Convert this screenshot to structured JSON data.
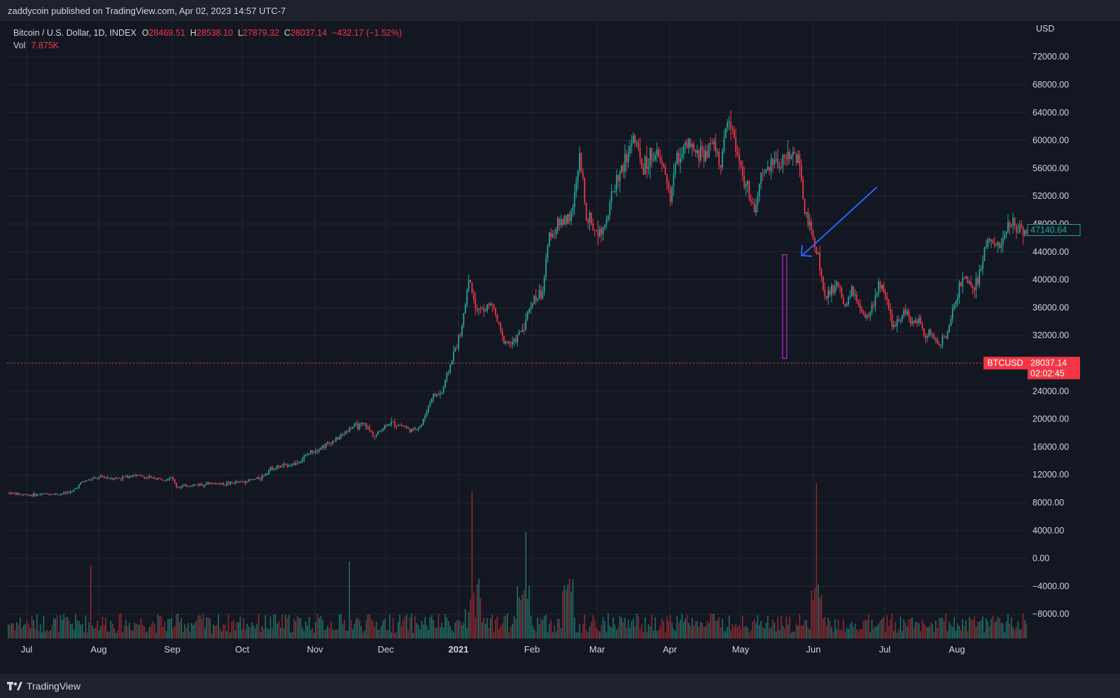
{
  "header": {
    "publisher": "zaddycoin published on TradingView.com, Apr 02, 2023 14:57 UTC-7"
  },
  "legend": {
    "symbol": "Bitcoin / U.S. Dollar, 1D, INDEX",
    "open_label": "O",
    "open": "28469.51",
    "high_label": "H",
    "high": "28538.10",
    "low_label": "L",
    "low": "27879.32",
    "close_label": "C",
    "close": "28037.14",
    "change": "−432.17 (−1.52%)",
    "vol_label": "Vol",
    "vol": "7.875K"
  },
  "price_tags": {
    "btcusd_symbol": "BTCUSD",
    "btcusd_price": "28037.14",
    "countdown": "02:02:45",
    "ma_value": "47140.64",
    "ma_partial": "48000.00"
  },
  "footer": {
    "brand": "TradingView"
  },
  "colors": {
    "background": "#131722",
    "up": "#26a69a",
    "down": "#f23645",
    "vol_up": "#1f6f66",
    "vol_down": "#8c2a2f",
    "highlight": "#9c27b0",
    "arrow": "#2962ff",
    "grid": "#232733"
  },
  "chart_data": {
    "type": "candlestick",
    "currency": "USD",
    "y_axis": {
      "unit": "USD",
      "ticks": [
        "72000.00",
        "68000.00",
        "64000.00",
        "60000.00",
        "56000.00",
        "52000.00",
        "44000.00",
        "40000.00",
        "36000.00",
        "32000.00",
        "24000.00",
        "20000.00",
        "16000.00",
        "12000.00",
        "8000.00",
        "4000.00",
        "0.00",
        "−4000.00",
        "−8000.00"
      ],
      "ylim": [
        -11500,
        75500
      ]
    },
    "x_axis": {
      "labels": [
        "Jul",
        "Aug",
        "Sep",
        "Oct",
        "Nov",
        "Dec",
        "2021",
        "Feb",
        "Mar",
        "Apr",
        "May",
        "Jun",
        "Jul",
        "Aug"
      ]
    },
    "current_price_line": 28037.14,
    "highlighted_candle": {
      "date": "May 19",
      "high": 43600,
      "low": 28700
    },
    "price_path_close": [
      [
        0,
        9400
      ],
      [
        8,
        9200
      ],
      [
        16,
        9100
      ],
      [
        24,
        9300
      ],
      [
        30,
        9200
      ],
      [
        38,
        9600
      ],
      [
        44,
        11000
      ],
      [
        50,
        11400
      ],
      [
        56,
        11700
      ],
      [
        62,
        11500
      ],
      [
        68,
        11600
      ],
      [
        74,
        12000
      ],
      [
        80,
        11700
      ],
      [
        86,
        11500
      ],
      [
        92,
        11400
      ],
      [
        97,
        11700
      ],
      [
        100,
        10300
      ],
      [
        106,
        10400
      ],
      [
        112,
        10600
      ],
      [
        120,
        10800
      ],
      [
        128,
        10700
      ],
      [
        136,
        10900
      ],
      [
        144,
        11200
      ],
      [
        150,
        11600
      ],
      [
        156,
        12900
      ],
      [
        164,
        13300
      ],
      [
        172,
        13700
      ],
      [
        180,
        15300
      ],
      [
        188,
        16200
      ],
      [
        196,
        17200
      ],
      [
        204,
        18800
      ],
      [
        212,
        19200
      ],
      [
        218,
        17500
      ],
      [
        226,
        19500
      ],
      [
        234,
        19100
      ],
      [
        240,
        18300
      ],
      [
        246,
        19200
      ],
      [
        252,
        23200
      ],
      [
        258,
        23800
      ],
      [
        264,
        28600
      ],
      [
        270,
        33000
      ],
      [
        274,
        40400
      ],
      [
        278,
        36500
      ],
      [
        282,
        35500
      ],
      [
        288,
        36500
      ],
      [
        294,
        31500
      ],
      [
        300,
        30600
      ],
      [
        306,
        33000
      ],
      [
        312,
        37000
      ],
      [
        318,
        38500
      ],
      [
        322,
        46400
      ],
      [
        328,
        48000
      ],
      [
        336,
        49800
      ],
      [
        340,
        57500
      ],
      [
        344,
        49500
      ],
      [
        350,
        46800
      ],
      [
        356,
        48800
      ],
      [
        362,
        54500
      ],
      [
        368,
        57200
      ],
      [
        372,
        60800
      ],
      [
        378,
        55800
      ],
      [
        384,
        58300
      ],
      [
        390,
        56000
      ],
      [
        394,
        52000
      ],
      [
        398,
        57500
      ],
      [
        404,
        59200
      ],
      [
        410,
        57800
      ],
      [
        416,
        58700
      ],
      [
        420,
        59800
      ],
      [
        424,
        56000
      ],
      [
        428,
        63500
      ],
      [
        432,
        60500
      ],
      [
        436,
        55600
      ],
      [
        440,
        53000
      ],
      [
        444,
        49500
      ],
      [
        448,
        54500
      ],
      [
        454,
        56500
      ],
      [
        460,
        57200
      ],
      [
        466,
        58200
      ],
      [
        470,
        57400
      ],
      [
        474,
        50000
      ],
      [
        478,
        46500
      ],
      [
        482,
        43600
      ],
      [
        486,
        37000
      ],
      [
        490,
        38500
      ],
      [
        494,
        39500
      ],
      [
        498,
        35500
      ],
      [
        502,
        38700
      ],
      [
        506,
        36000
      ],
      [
        510,
        34300
      ],
      [
        514,
        35800
      ],
      [
        518,
        39500
      ],
      [
        522,
        37300
      ],
      [
        526,
        33200
      ],
      [
        530,
        34500
      ],
      [
        534,
        35700
      ],
      [
        538,
        33600
      ],
      [
        542,
        34500
      ],
      [
        546,
        32100
      ],
      [
        550,
        32000
      ],
      [
        554,
        30800
      ],
      [
        558,
        31800
      ],
      [
        562,
        35500
      ],
      [
        566,
        39400
      ],
      [
        570,
        40000
      ],
      [
        574,
        38200
      ],
      [
        578,
        40500
      ],
      [
        582,
        45500
      ],
      [
        586,
        46200
      ],
      [
        590,
        44500
      ],
      [
        594,
        46800
      ],
      [
        598,
        48300
      ],
      [
        602,
        47400
      ],
      [
        606,
        47100
      ]
    ],
    "volume_note": "Volume histogram at bottom, colored by candle direction; large spikes in mid-January and on May 19"
  }
}
